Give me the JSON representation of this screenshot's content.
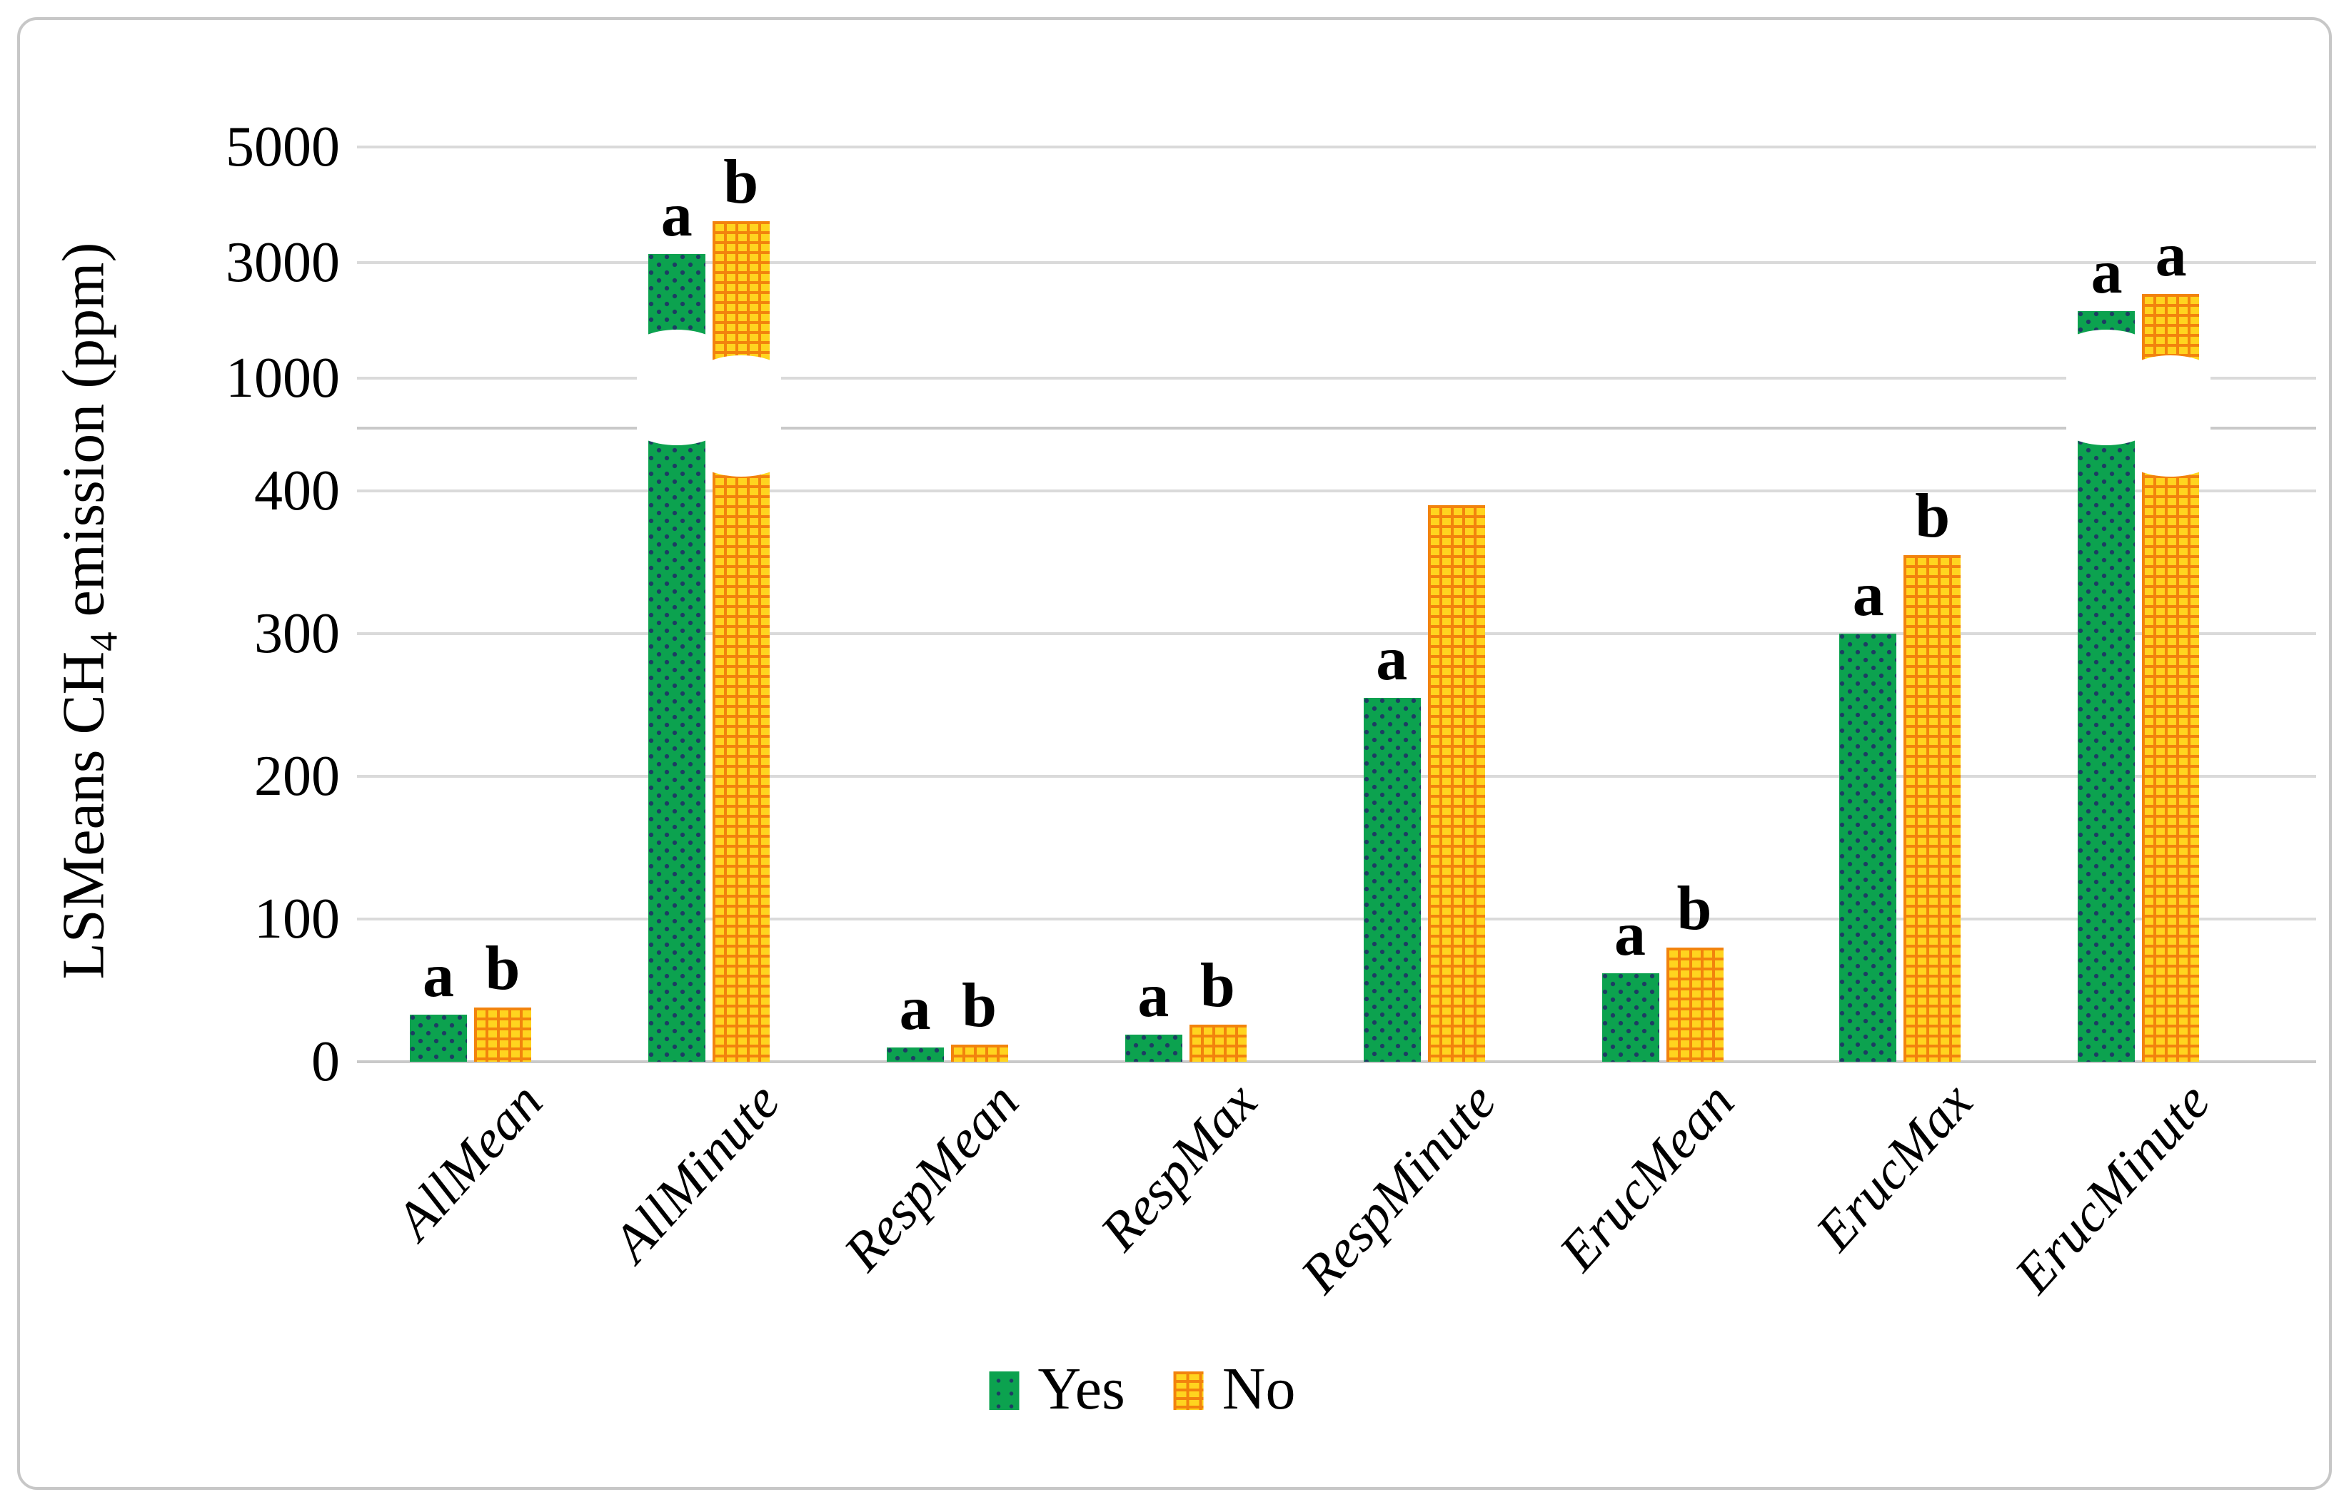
{
  "figure": {
    "y_axis_title": {
      "prefix": "LSMeans CH",
      "subscript": "4",
      "suffix": " emission (ppm)"
    }
  },
  "chart_data": {
    "type": "bar",
    "title": "",
    "ylabel": "LSMeans CH4 emission (ppm)",
    "xlabel": "",
    "grid": true,
    "broken_y_axis": true,
    "upper_axis": {
      "ticks": [
        5000,
        3000,
        1000
      ],
      "range": [
        1000,
        5000
      ]
    },
    "lower_axis": {
      "ticks": [
        400,
        300,
        200,
        100,
        0
      ],
      "range": [
        0,
        420
      ]
    },
    "legend_position": "bottom",
    "categories": [
      "AllMean",
      "AllMinute",
      "RespMean",
      "RespMax",
      "RespMinute",
      "ErucMean",
      "ErucMax",
      "ErucMinute"
    ],
    "series": [
      {
        "name": "Yes",
        "pattern": "green-dotted",
        "color": "#0CA24F",
        "values": [
          33,
          3150,
          10,
          19,
          255,
          62,
          300,
          2150
        ],
        "letters": [
          "a",
          "a",
          "a",
          "a",
          "a",
          "a",
          "a",
          "a"
        ]
      },
      {
        "name": "No",
        "pattern": "yellow-brick",
        "color": "#FFD41F",
        "mortar_color": "#F2830D",
        "values": [
          38,
          3700,
          12,
          26,
          390,
          80,
          355,
          2450
        ],
        "letters": [
          "b",
          "b",
          "b",
          "b",
          "",
          "b",
          "b",
          "a"
        ]
      }
    ]
  }
}
